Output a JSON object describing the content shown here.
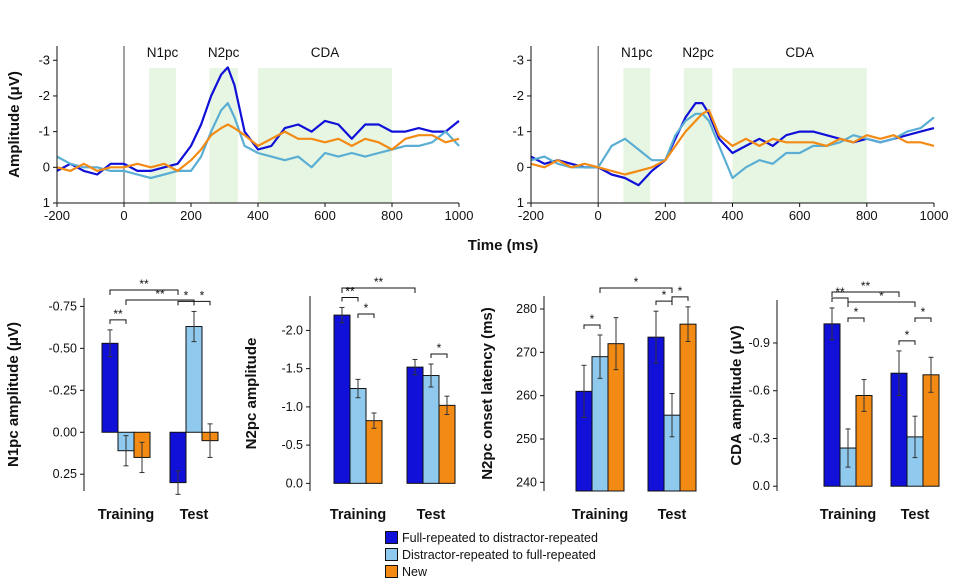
{
  "colors": {
    "full": "#1010d8",
    "distractor": "#8fc9ee",
    "distractor_line": "#5aaed4",
    "new": "#f28a14",
    "window": "#e6f6e2"
  },
  "legend": [
    {
      "key": "full",
      "label": "Full-repeated to distractor-repeated"
    },
    {
      "key": "distractor",
      "label": "Distractor-repeated to full-repeated"
    },
    {
      "key": "new",
      "label": "New"
    }
  ],
  "shared_xlabel": "Time (ms)",
  "chart_data": [
    {
      "type": "line",
      "id": "erp-left",
      "ylabel": "Amplitude (μV)",
      "xlim": [
        -200,
        1000
      ],
      "ylim": [
        1,
        -3.4
      ],
      "xticks": [
        "-200",
        "0",
        "200",
        "400",
        "600",
        "800",
        "1000"
      ],
      "yticks": [
        "-3",
        "-2",
        "-1",
        "0",
        "1"
      ],
      "windows": [
        {
          "label": "N1pc",
          "from": 75,
          "to": 155
        },
        {
          "label": "N2pc",
          "from": 255,
          "to": 340
        },
        {
          "label": "CDA",
          "from": 400,
          "to": 800
        }
      ],
      "series": [
        {
          "key": "full",
          "x": [
            -200,
            -160,
            -120,
            -80,
            -40,
            0,
            40,
            80,
            120,
            160,
            200,
            230,
            260,
            290,
            310,
            330,
            360,
            400,
            440,
            480,
            520,
            560,
            600,
            640,
            680,
            720,
            760,
            800,
            840,
            880,
            920,
            960,
            1000
          ],
          "y": [
            0.1,
            -0.1,
            0.1,
            0.2,
            -0.1,
            -0.1,
            0.1,
            0.1,
            0.0,
            -0.1,
            -0.6,
            -1.2,
            -2.0,
            -2.6,
            -2.8,
            -2.3,
            -1.0,
            -0.5,
            -0.6,
            -1.1,
            -1.2,
            -1.0,
            -1.3,
            -1.2,
            -0.8,
            -1.2,
            -1.2,
            -1.0,
            -1.0,
            -1.1,
            -1.0,
            -1.0,
            -1.3
          ]
        },
        {
          "key": "distractor",
          "x": [
            -200,
            -160,
            -120,
            -80,
            -40,
            0,
            40,
            80,
            120,
            160,
            200,
            230,
            260,
            290,
            310,
            330,
            360,
            400,
            440,
            480,
            520,
            560,
            600,
            640,
            680,
            720,
            760,
            800,
            840,
            880,
            920,
            960,
            1000
          ],
          "y": [
            -0.3,
            -0.1,
            0.0,
            0.0,
            0.1,
            0.1,
            0.2,
            0.3,
            0.2,
            0.1,
            0.1,
            -0.3,
            -1.0,
            -1.6,
            -1.8,
            -1.4,
            -0.6,
            -0.4,
            -0.3,
            -0.2,
            -0.3,
            0.0,
            -0.4,
            -0.3,
            -0.4,
            -0.3,
            -0.4,
            -0.5,
            -0.6,
            -0.6,
            -0.7,
            -1.0,
            -0.6
          ]
        },
        {
          "key": "new",
          "x": [
            -200,
            -160,
            -120,
            -80,
            -40,
            0,
            40,
            80,
            120,
            160,
            200,
            230,
            260,
            290,
            310,
            330,
            360,
            400,
            440,
            480,
            520,
            560,
            600,
            640,
            680,
            720,
            760,
            800,
            840,
            880,
            920,
            960,
            1000
          ],
          "y": [
            0.0,
            0.1,
            -0.1,
            0.1,
            0.0,
            0.0,
            -0.1,
            0.0,
            -0.1,
            0.1,
            -0.2,
            -0.5,
            -0.9,
            -1.1,
            -1.2,
            -1.1,
            -0.9,
            -0.6,
            -0.8,
            -1.0,
            -0.8,
            -0.8,
            -0.7,
            -0.8,
            -0.6,
            -0.8,
            -0.7,
            -0.5,
            -0.8,
            -0.9,
            -0.9,
            -0.7,
            -0.8
          ]
        }
      ]
    },
    {
      "type": "line",
      "id": "erp-right",
      "ylabel": "",
      "xlim": [
        -200,
        1000
      ],
      "ylim": [
        1,
        -3.4
      ],
      "xticks": [
        "-200",
        "0",
        "200",
        "400",
        "600",
        "800",
        "1000"
      ],
      "yticks": [
        "-3",
        "-2",
        "-1",
        "0",
        "1"
      ],
      "windows": [
        {
          "label": "N1pc",
          "from": 75,
          "to": 155
        },
        {
          "label": "N2pc",
          "from": 255,
          "to": 340
        },
        {
          "label": "CDA",
          "from": 400,
          "to": 800
        }
      ],
      "series": [
        {
          "key": "full",
          "x": [
            -200,
            -160,
            -120,
            -80,
            -40,
            0,
            40,
            80,
            120,
            160,
            200,
            230,
            260,
            290,
            310,
            330,
            360,
            400,
            440,
            480,
            520,
            560,
            600,
            640,
            680,
            720,
            760,
            800,
            840,
            880,
            920,
            960,
            1000
          ],
          "y": [
            -0.3,
            -0.1,
            -0.2,
            -0.1,
            0.0,
            0.0,
            0.2,
            0.3,
            0.5,
            0.1,
            -0.2,
            -0.8,
            -1.4,
            -1.8,
            -1.8,
            -1.5,
            -0.8,
            -0.4,
            -0.6,
            -0.8,
            -0.6,
            -0.9,
            -1.0,
            -1.0,
            -0.9,
            -0.8,
            -0.7,
            -0.8,
            -0.7,
            -0.8,
            -0.9,
            -1.0,
            -1.1
          ]
        },
        {
          "key": "distractor",
          "x": [
            -200,
            -160,
            -120,
            -80,
            -40,
            0,
            40,
            80,
            120,
            160,
            200,
            230,
            260,
            290,
            310,
            330,
            360,
            400,
            440,
            480,
            520,
            560,
            600,
            640,
            680,
            720,
            760,
            800,
            840,
            880,
            920,
            960,
            1000
          ],
          "y": [
            -0.2,
            -0.3,
            -0.1,
            0.0,
            0.0,
            0.0,
            -0.6,
            -0.8,
            -0.5,
            -0.2,
            -0.2,
            -0.9,
            -1.3,
            -1.5,
            -1.5,
            -1.3,
            -0.6,
            0.3,
            0.0,
            -0.2,
            -0.1,
            -0.4,
            -0.4,
            -0.6,
            -0.6,
            -0.7,
            -0.9,
            -0.8,
            -0.7,
            -0.8,
            -1.0,
            -1.1,
            -1.4
          ]
        },
        {
          "key": "new",
          "x": [
            -200,
            -160,
            -120,
            -80,
            -40,
            0,
            40,
            80,
            120,
            160,
            200,
            230,
            260,
            290,
            310,
            330,
            360,
            400,
            440,
            480,
            520,
            560,
            600,
            640,
            680,
            720,
            760,
            800,
            840,
            880,
            920,
            960,
            1000
          ],
          "y": [
            -0.1,
            0.0,
            -0.2,
            0.0,
            -0.1,
            0.0,
            0.1,
            0.2,
            0.1,
            0.0,
            -0.2,
            -0.6,
            -1.0,
            -1.3,
            -1.5,
            -1.6,
            -0.9,
            -0.6,
            -0.8,
            -0.6,
            -0.8,
            -0.7,
            -0.7,
            -0.7,
            -0.6,
            -0.8,
            -0.7,
            -0.9,
            -0.8,
            -0.9,
            -0.7,
            -0.7,
            -0.6
          ]
        }
      ]
    },
    {
      "type": "bar",
      "id": "n1pc-bars",
      "ylabel": "N1pc amplitude (μV)",
      "categories": [
        "Training",
        "Test"
      ],
      "ylim": [
        0.35,
        -0.8
      ],
      "yticks": [
        "-0.75",
        "-0.50",
        "-0.25",
        "0.00",
        "0.25"
      ],
      "ytick_values": [
        -0.75,
        -0.5,
        -0.25,
        0,
        0.25
      ],
      "series": [
        {
          "key": "full",
          "values": [
            -0.53,
            0.3
          ],
          "errors": [
            0.08,
            0.07
          ]
        },
        {
          "key": "distractor",
          "values": [
            0.11,
            -0.63
          ],
          "errors": [
            0.09,
            0.09
          ]
        },
        {
          "key": "new",
          "values": [
            0.15,
            0.05
          ],
          "errors": [
            0.09,
            0.1
          ]
        }
      ],
      "significance": [
        {
          "label": "**",
          "from": [
            0,
            0
          ],
          "to": [
            0,
            1
          ]
        },
        {
          "label": "**",
          "from": [
            0,
            0
          ],
          "to": [
            1,
            0
          ]
        },
        {
          "label": "**",
          "from": [
            0,
            1
          ],
          "to": [
            1,
            1
          ]
        },
        {
          "label": "*",
          "from": [
            1,
            0
          ],
          "to": [
            1,
            1
          ]
        },
        {
          "label": "*",
          "from": [
            1,
            1
          ],
          "to": [
            1,
            2
          ]
        }
      ]
    },
    {
      "type": "bar",
      "id": "n2pc-bars",
      "ylabel": "N2pc amplitude",
      "categories": [
        "Training",
        "Test"
      ],
      "ylim": [
        0.1,
        -2.45
      ],
      "yticks": [
        "-2.0",
        "-1.5",
        "-1.0",
        "-0.5",
        "0.0"
      ],
      "ytick_values": [
        -2,
        -1.5,
        -1,
        -0.5,
        0
      ],
      "series": [
        {
          "key": "full",
          "values": [
            -2.2,
            -1.52
          ],
          "errors": [
            0.1,
            0.1
          ]
        },
        {
          "key": "distractor",
          "values": [
            -1.24,
            -1.41
          ],
          "errors": [
            0.12,
            0.15
          ]
        },
        {
          "key": "new",
          "values": [
            -0.82,
            -1.02
          ],
          "errors": [
            0.1,
            0.12
          ]
        }
      ],
      "significance": [
        {
          "label": "**",
          "from": [
            0,
            0
          ],
          "to": [
            0,
            1
          ]
        },
        {
          "label": "*",
          "from": [
            0,
            1
          ],
          "to": [
            0,
            2
          ]
        },
        {
          "label": "**",
          "from": [
            0,
            0
          ],
          "to": [
            1,
            0
          ]
        },
        {
          "label": "*",
          "from": [
            1,
            1
          ],
          "to": [
            1,
            2
          ]
        }
      ]
    },
    {
      "type": "bar",
      "id": "latency-bars",
      "ylabel": "N2pc onset latency (ms)",
      "categories": [
        "Training",
        "Test"
      ],
      "ylim": [
        238,
        283
      ],
      "yticks": [
        "240",
        "250",
        "260",
        "270",
        "280"
      ],
      "ytick_values": [
        240,
        250,
        260,
        270,
        280
      ],
      "series": [
        {
          "key": "full",
          "values": [
            261,
            273.5
          ],
          "errors": [
            6,
            6
          ]
        },
        {
          "key": "distractor",
          "values": [
            269,
            255.5
          ],
          "errors": [
            5,
            5
          ]
        },
        {
          "key": "new",
          "values": [
            272,
            276.5
          ],
          "errors": [
            6,
            4
          ]
        }
      ],
      "significance": [
        {
          "label": "*",
          "from": [
            0,
            0
          ],
          "to": [
            0,
            1
          ]
        },
        {
          "label": "*",
          "from": [
            0,
            1
          ],
          "to": [
            1,
            1
          ]
        },
        {
          "label": "*",
          "from": [
            1,
            0
          ],
          "to": [
            1,
            1
          ]
        },
        {
          "label": "*",
          "from": [
            1,
            1
          ],
          "to": [
            1,
            2
          ]
        }
      ]
    },
    {
      "type": "bar",
      "id": "cda-bars",
      "ylabel": "CDA amplitude (μV)",
      "categories": [
        "Training",
        "Test"
      ],
      "ylim": [
        0.03,
        -1.17
      ],
      "yticks": [
        "-0.9",
        "-0.6",
        "-0.3",
        "0.0"
      ],
      "ytick_values": [
        -0.9,
        -0.6,
        -0.3,
        0
      ],
      "series": [
        {
          "key": "full",
          "values": [
            -1.02,
            -0.71
          ],
          "errors": [
            0.1,
            0.14
          ]
        },
        {
          "key": "distractor",
          "values": [
            -0.24,
            -0.31
          ],
          "errors": [
            0.12,
            0.13
          ]
        },
        {
          "key": "new",
          "values": [
            -0.57,
            -0.7
          ],
          "errors": [
            0.1,
            0.11
          ]
        }
      ],
      "significance": [
        {
          "label": "**",
          "from": [
            0,
            0
          ],
          "to": [
            0,
            1
          ]
        },
        {
          "label": "*",
          "from": [
            0,
            1
          ],
          "to": [
            0,
            2
          ]
        },
        {
          "label": "**",
          "from": [
            0,
            0
          ],
          "to": [
            1,
            0
          ]
        },
        {
          "label": "*",
          "from": [
            0,
            1
          ],
          "to": [
            1,
            1
          ]
        },
        {
          "label": "*",
          "from": [
            1,
            0
          ],
          "to": [
            1,
            1
          ]
        },
        {
          "label": "*",
          "from": [
            1,
            1
          ],
          "to": [
            1,
            2
          ]
        }
      ]
    }
  ]
}
